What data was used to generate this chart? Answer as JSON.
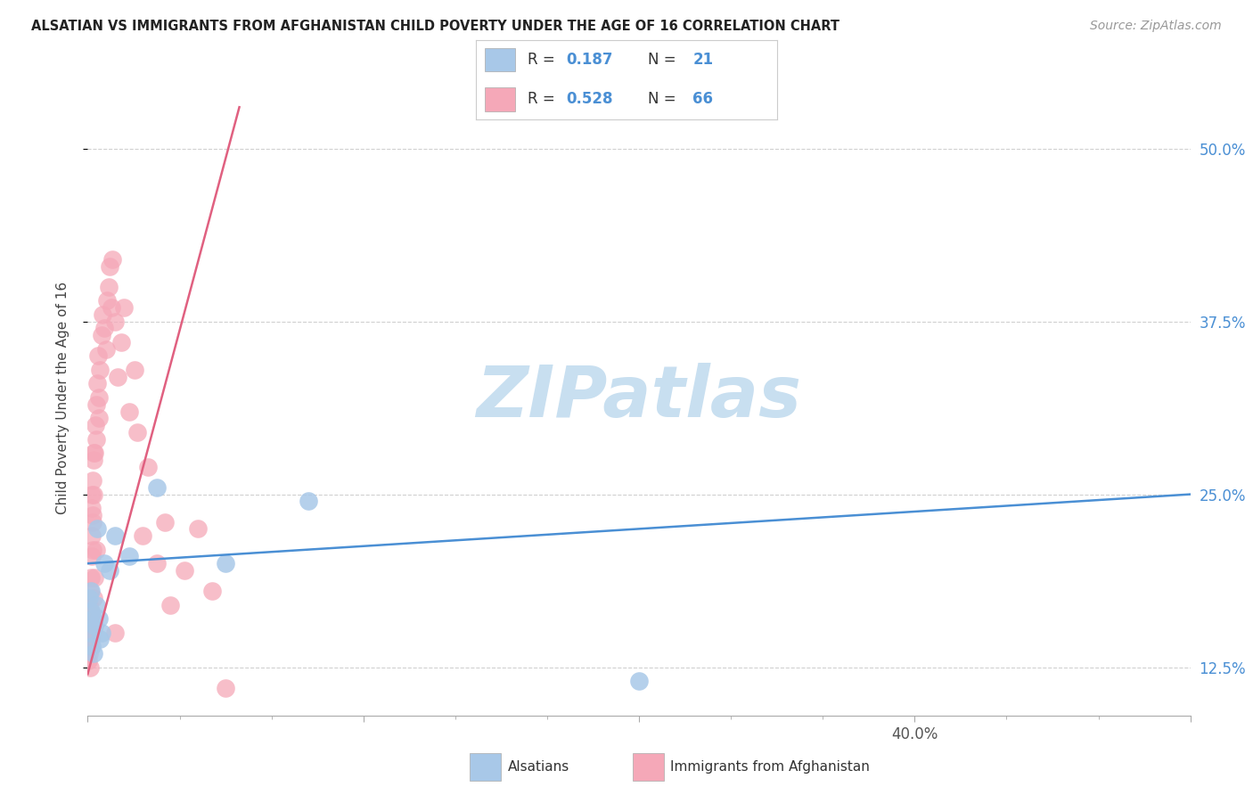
{
  "title": "ALSATIAN VS IMMIGRANTS FROM AFGHANISTAN CHILD POVERTY UNDER THE AGE OF 16 CORRELATION CHART",
  "source": "Source: ZipAtlas.com",
  "ylabel": "Child Poverty Under the Age of 16",
  "alsatian_color": "#a8c8e8",
  "afghanistan_color": "#f5a8b8",
  "alsatian_line_color": "#4a8fd4",
  "afghanistan_line_color": "#e06080",
  "R_alsatian": 0.187,
  "N_alsatian": 21,
  "R_afghanistan": 0.528,
  "N_afghanistan": 66,
  "alsatian_label": "Alsatians",
  "afghanistan_label": "Immigrants from Afghanistan",
  "xlim": [
    0.0,
    40.0
  ],
  "ylim_data_min": 9.0,
  "ylim_data_max": 55.0,
  "ytick_vals": [
    12.5,
    25.0,
    37.5,
    50.0
  ],
  "xtick_major": [
    0,
    10,
    20,
    30,
    40
  ],
  "watermark_text": "ZIPatlas",
  "watermark_color": "#c8dff0",
  "grid_color": "#d0d0d0",
  "als_x": [
    0.05,
    0.08,
    0.1,
    0.12,
    0.15,
    0.18,
    0.2,
    0.25,
    0.3,
    0.35,
    0.4,
    0.45,
    0.5,
    0.6,
    0.8,
    1.0,
    1.5,
    2.5,
    5.0,
    8.0,
    20.0
  ],
  "als_y": [
    17.5,
    15.0,
    16.5,
    18.0,
    14.0,
    16.0,
    13.5,
    15.5,
    17.0,
    22.5,
    16.0,
    14.5,
    15.0,
    20.0,
    19.5,
    22.0,
    20.5,
    25.5,
    20.0,
    24.5,
    11.5
  ],
  "afg_x": [
    0.02,
    0.03,
    0.04,
    0.05,
    0.06,
    0.07,
    0.08,
    0.09,
    0.1,
    0.12,
    0.13,
    0.14,
    0.15,
    0.16,
    0.17,
    0.18,
    0.19,
    0.2,
    0.22,
    0.25,
    0.27,
    0.3,
    0.32,
    0.35,
    0.38,
    0.4,
    0.42,
    0.45,
    0.5,
    0.55,
    0.6,
    0.65,
    0.7,
    0.75,
    0.8,
    0.85,
    0.9,
    1.0,
    1.1,
    1.2,
    1.3,
    1.5,
    1.7,
    1.8,
    2.0,
    2.2,
    2.5,
    2.8,
    3.0,
    3.5,
    4.0,
    4.5,
    5.0,
    1.0,
    0.1,
    0.08,
    0.05,
    0.03,
    0.12,
    0.2,
    0.25,
    0.3,
    0.18,
    0.15,
    0.22,
    0.1
  ],
  "afg_y": [
    14.0,
    16.0,
    15.0,
    13.5,
    17.0,
    15.5,
    12.5,
    18.0,
    16.5,
    14.5,
    19.0,
    20.5,
    22.0,
    24.0,
    23.5,
    26.0,
    21.0,
    25.0,
    27.5,
    28.0,
    30.0,
    31.5,
    29.0,
    33.0,
    35.0,
    30.5,
    32.0,
    34.0,
    36.5,
    38.0,
    37.0,
    35.5,
    39.0,
    40.0,
    41.5,
    38.5,
    42.0,
    37.5,
    33.5,
    36.0,
    38.5,
    31.0,
    34.0,
    29.5,
    22.0,
    27.0,
    20.0,
    23.0,
    17.0,
    19.5,
    22.5,
    18.0,
    11.0,
    15.0,
    14.5,
    16.5,
    14.0,
    13.0,
    15.5,
    17.5,
    19.0,
    21.0,
    23.0,
    25.0,
    28.0,
    16.0
  ],
  "als_trend_x0": 0.0,
  "als_trend_y0": 20.0,
  "als_trend_x1": 40.0,
  "als_trend_y1": 25.0,
  "afg_trend_x0": 0.0,
  "afg_trend_y0": 12.0,
  "afg_trend_x1": 5.5,
  "afg_trend_y1": 53.0
}
